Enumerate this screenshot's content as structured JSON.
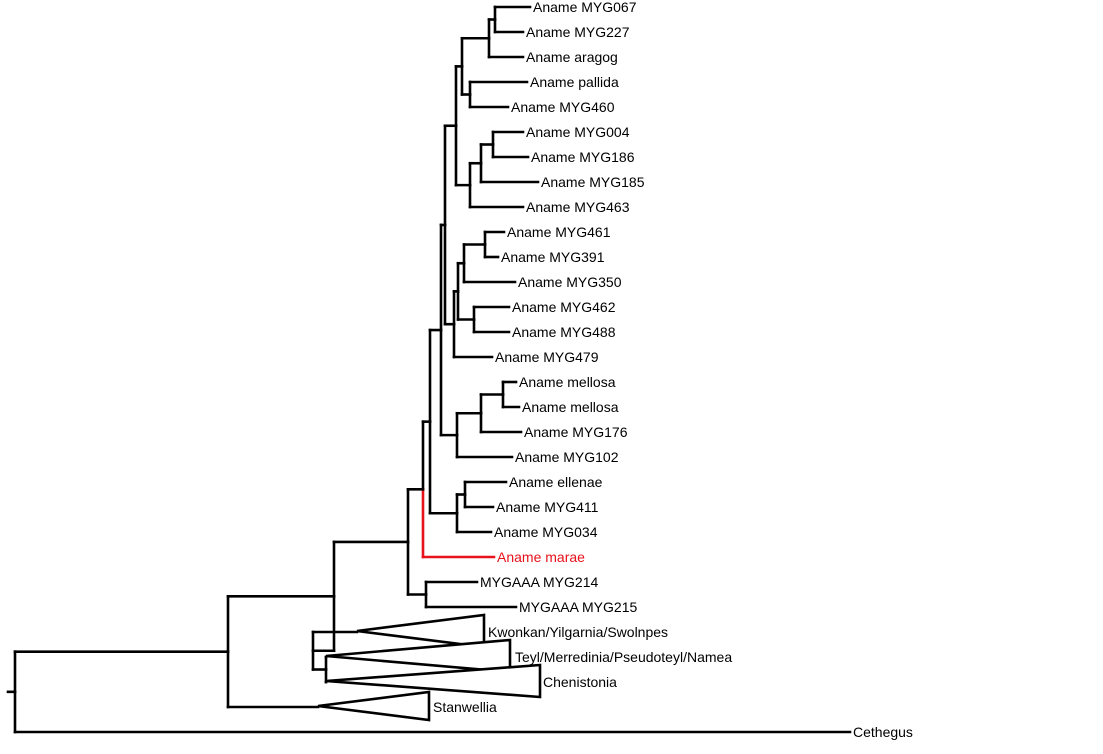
{
  "tree": {
    "highlight_color": "#e8121b",
    "line_color": "#000000",
    "taxa": [
      {
        "id": "MYG067",
        "label": "Aname MYG067"
      },
      {
        "id": "MYG227",
        "label": "Aname MYG227"
      },
      {
        "id": "aragog",
        "label": "Aname aragog"
      },
      {
        "id": "pallida",
        "label": "Aname pallida"
      },
      {
        "id": "MYG460",
        "label": "Aname MYG460"
      },
      {
        "id": "MYG004",
        "label": "Aname MYG004"
      },
      {
        "id": "MYG186",
        "label": "Aname MYG186"
      },
      {
        "id": "MYG185",
        "label": "Aname MYG185"
      },
      {
        "id": "MYG463",
        "label": "Aname MYG463"
      },
      {
        "id": "MYG461",
        "label": "Aname MYG461"
      },
      {
        "id": "MYG391",
        "label": "Aname MYG391"
      },
      {
        "id": "MYG350",
        "label": "Aname MYG350"
      },
      {
        "id": "MYG462",
        "label": "Aname MYG462"
      },
      {
        "id": "MYG488",
        "label": "Aname MYG488"
      },
      {
        "id": "MYG479",
        "label": "Aname MYG479"
      },
      {
        "id": "mellosa1",
        "label": "Aname mellosa"
      },
      {
        "id": "mellosa2",
        "label": "Aname mellosa"
      },
      {
        "id": "MYG176",
        "label": "Aname MYG176"
      },
      {
        "id": "MYG102",
        "label": "Aname MYG102"
      },
      {
        "id": "ellenae",
        "label": "Aname ellenae"
      },
      {
        "id": "MYG411",
        "label": "Aname MYG411"
      },
      {
        "id": "MYG034",
        "label": "Aname MYG034"
      },
      {
        "id": "marae",
        "label": "Aname marae",
        "highlighted": true
      },
      {
        "id": "MYG214",
        "label": "MYGAAA MYG214"
      },
      {
        "id": "MYG215",
        "label": "MYGAAA MYG215"
      },
      {
        "id": "kwonkan",
        "label": "Kwonkan/Yilgarnia/Swolnpes",
        "collapsed": true
      },
      {
        "id": "teyl",
        "label": "Teyl/Merredinia/Pseudoteyl/Namea",
        "collapsed": true
      },
      {
        "id": "chenistonia",
        "label": "Chenistonia",
        "collapsed": true
      },
      {
        "id": "stanwellia",
        "label": "Stanwellia",
        "collapsed": true
      },
      {
        "id": "cethegus",
        "label": "Cethegus"
      }
    ]
  }
}
